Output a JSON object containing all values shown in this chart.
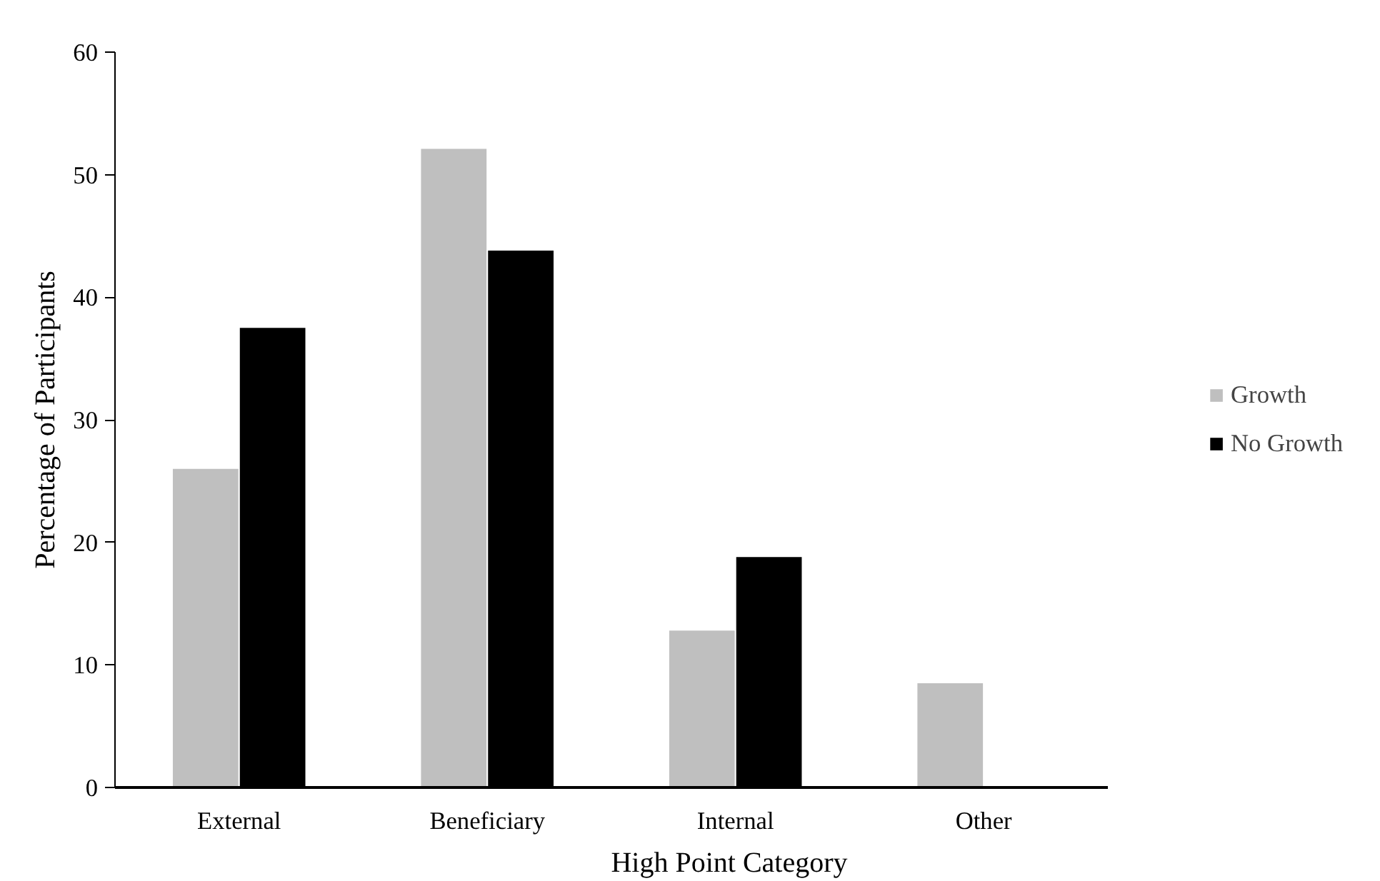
{
  "chart_data": {
    "type": "bar",
    "xlabel": "High Point Category",
    "ylabel": "Percentage of Participants",
    "categories": [
      "External",
      "Beneficiary",
      "Internal",
      "Other"
    ],
    "series": [
      {
        "name": "Growth",
        "color": "#bfbfbf",
        "values": [
          26,
          52.1,
          12.8,
          8.5
        ]
      },
      {
        "name": "No Growth",
        "color": "#000000",
        "values": [
          37.5,
          43.8,
          18.8,
          0
        ]
      }
    ],
    "ylim": [
      0,
      60
    ],
    "yticks": [
      0,
      10,
      20,
      30,
      40,
      50,
      60
    ],
    "grid": false,
    "legend": "right"
  }
}
